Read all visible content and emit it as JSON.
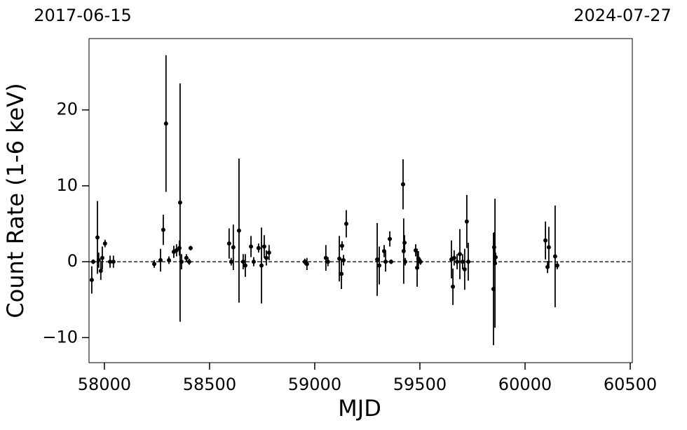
{
  "chart_data": {
    "type": "errorbar",
    "xlabel": "MJD",
    "ylabel": "Count Rate (1-6 keV)",
    "top_left_label": "2017-06-15",
    "top_right_label": "2024-07-27",
    "x": [
      57940,
      57947,
      57967,
      57973,
      57983,
      57990,
      58003,
      58027,
      58043,
      58237,
      58267,
      58280,
      58293,
      58307,
      58330,
      58343,
      58357,
      58360,
      58367,
      58390,
      58403,
      58410,
      58593,
      58603,
      58613,
      58640,
      58660,
      58670,
      58697,
      58710,
      58733,
      58747,
      58760,
      58770,
      58783,
      58953,
      58963,
      59053,
      59063,
      59117,
      59127,
      59130,
      59137,
      59150,
      59297,
      59307,
      59330,
      59337,
      59357,
      59363,
      59420,
      59423,
      59427,
      59430,
      59480,
      59487,
      59493,
      59503,
      59650,
      59657,
      59663,
      59677,
      59690,
      59703,
      59713,
      59723,
      59730,
      59850,
      59853,
      59857,
      59860,
      60097,
      60107,
      60113,
      60143,
      60153
    ],
    "values": [
      -2.4,
      0,
      3.2,
      0.2,
      -1.2,
      0.5,
      2.4,
      0,
      0,
      -0.3,
      0.2,
      4.2,
      18.2,
      0.2,
      1.3,
      1.5,
      1.8,
      7.8,
      0,
      0.5,
      0,
      1.8,
      2.4,
      0,
      1.9,
      4.1,
      0,
      -0.5,
      2,
      0,
      1.8,
      -0.5,
      2,
      0.5,
      1.2,
      0,
      -0.3,
      0.5,
      0,
      0.4,
      -1.6,
      2.1,
      0.2,
      5,
      0.3,
      -0.5,
      1.4,
      0,
      3,
      0,
      10.2,
      1.4,
      2.5,
      0,
      1.5,
      -0.8,
      0.4,
      0,
      0.3,
      -3.3,
      0.5,
      0,
      1,
      0,
      -1,
      5.3,
      0,
      -3.6,
      1.9,
      -0.2,
      0.6,
      2.8,
      -0.7,
      1.9,
      0.7,
      -0.5
    ],
    "errors": [
      1.8,
      0.3,
      4.8,
      1,
      1.2,
      1.5,
      0.5,
      0.8,
      0.8,
      0.5,
      1.5,
      2,
      9,
      0.5,
      0.8,
      0.8,
      1,
      15.7,
      1,
      0.5,
      0.4,
      0.3,
      2,
      0.5,
      3,
      9.5,
      1,
      1.5,
      1.4,
      0.6,
      0.6,
      5,
      1.5,
      1,
      1,
      0.4,
      0.8,
      1.7,
      0.6,
      3,
      2,
      0.6,
      0.7,
      1.8,
      4.8,
      2.5,
      0.8,
      1.3,
      1,
      0.3,
      3.3,
      4.3,
      1,
      0.5,
      0.8,
      2.5,
      1,
      0.4,
      2.5,
      2.4,
      1,
      1,
      3.3,
      1,
      2.7,
      3.5,
      2.5,
      7.4,
      2,
      8.5,
      0.6,
      2.5,
      0.8,
      2.7,
      6.7,
      0.5
    ],
    "color": "#000000",
    "hline": 0,
    "xlim": [
      57927,
      60510
    ],
    "ylim": [
      -13.3,
      29.4
    ],
    "xticks": [
      58000,
      58500,
      59000,
      59500,
      60000,
      60500
    ],
    "yticks": [
      {
        "value": -10,
        "label": "−10"
      },
      0,
      10,
      20
    ]
  }
}
